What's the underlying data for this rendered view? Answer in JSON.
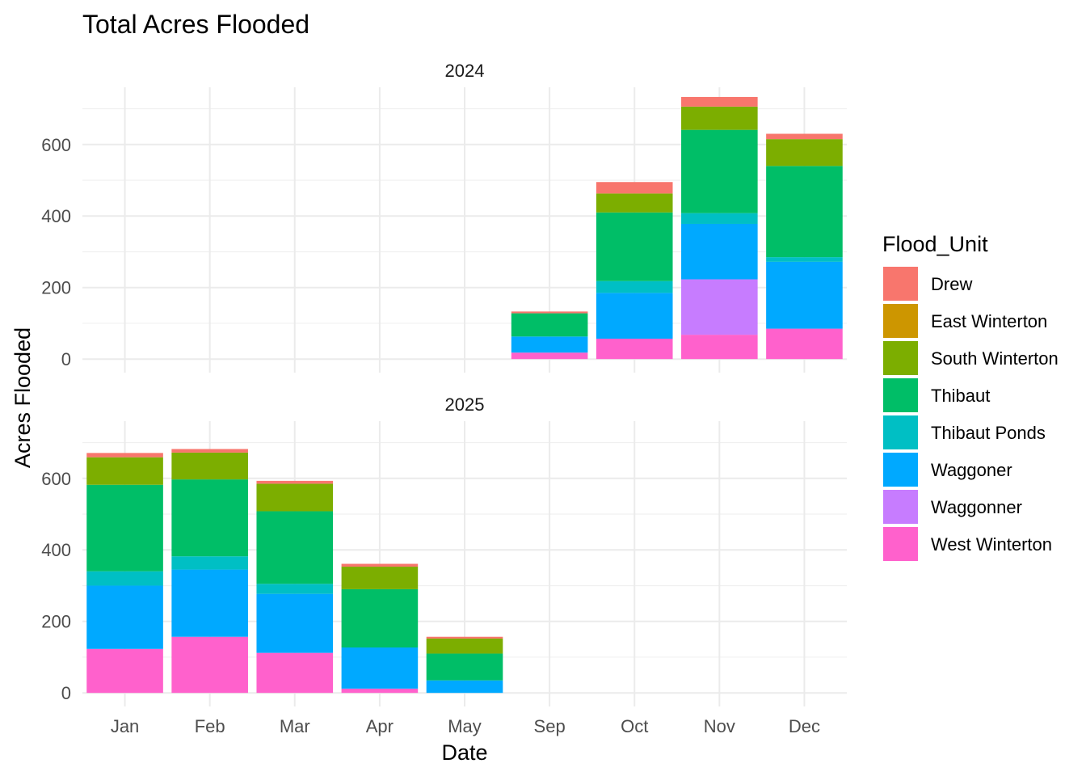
{
  "chart_data": {
    "type": "bar",
    "stacked": true,
    "title": "Total Acres Flooded",
    "xlabel": "Date",
    "ylabel": "Acres Flooded",
    "categories": [
      "Jan",
      "Feb",
      "Mar",
      "Apr",
      "May",
      "Sep",
      "Oct",
      "Nov",
      "Dec"
    ],
    "ylim": [
      -38,
      760
    ],
    "y_ticks": [
      0,
      200,
      400,
      600
    ],
    "grid": true,
    "legend": {
      "title": "Flood_Unit",
      "placement": "right",
      "entries": [
        {
          "name": "Drew",
          "color": "#F8766D"
        },
        {
          "name": "East Winterton",
          "color": "#CD9600"
        },
        {
          "name": "South Winterton",
          "color": "#7CAE00"
        },
        {
          "name": "Thibaut",
          "color": "#00BE67"
        },
        {
          "name": "Thibaut Ponds",
          "color": "#00BFC4"
        },
        {
          "name": "Waggoner",
          "color": "#00A9FF"
        },
        {
          "name": "Waggonner",
          "color": "#C77CFF"
        },
        {
          "name": "West Winterton",
          "color": "#FF61CC"
        }
      ]
    },
    "facets": [
      {
        "label": "2024",
        "series": [
          {
            "name": "West Winterton",
            "values": [
              0,
              0,
              0,
              0,
              0,
              18,
              57,
              68,
              85
            ]
          },
          {
            "name": "Waggonner",
            "values": [
              0,
              0,
              0,
              0,
              0,
              0,
              0,
              155,
              0
            ]
          },
          {
            "name": "Waggoner",
            "values": [
              0,
              0,
              0,
              0,
              0,
              45,
              128,
              155,
              187
            ]
          },
          {
            "name": "Thibaut Ponds",
            "values": [
              0,
              0,
              0,
              0,
              0,
              0,
              33,
              30,
              13
            ]
          },
          {
            "name": "Thibaut",
            "values": [
              0,
              0,
              0,
              0,
              0,
              65,
              192,
              233,
              255
            ]
          },
          {
            "name": "East Winterton",
            "values": [
              0,
              0,
              0,
              0,
              0,
              0,
              0,
              0,
              0
            ]
          },
          {
            "name": "South Winterton",
            "values": [
              0,
              0,
              0,
              0,
              0,
              0,
              53,
              65,
              75
            ]
          },
          {
            "name": "Drew",
            "values": [
              0,
              0,
              0,
              0,
              0,
              5,
              32,
              27,
              15
            ]
          }
        ]
      },
      {
        "label": "2025",
        "series": [
          {
            "name": "West Winterton",
            "values": [
              123,
              157,
              112,
              12,
              0,
              0,
              0,
              0,
              0
            ]
          },
          {
            "name": "Waggonner",
            "values": [
              0,
              0,
              0,
              0,
              0,
              0,
              0,
              0,
              0
            ]
          },
          {
            "name": "Waggoner",
            "values": [
              177,
              188,
              165,
              115,
              35,
              0,
              0,
              0,
              0
            ]
          },
          {
            "name": "Thibaut Ponds",
            "values": [
              40,
              37,
              28,
              0,
              0,
              0,
              0,
              0,
              0
            ]
          },
          {
            "name": "Thibaut",
            "values": [
              242,
              215,
              203,
              163,
              75,
              0,
              0,
              0,
              0
            ]
          },
          {
            "name": "East Winterton",
            "values": [
              0,
              0,
              0,
              0,
              0,
              0,
              0,
              0,
              0
            ]
          },
          {
            "name": "South Winterton",
            "values": [
              77,
              75,
              77,
              63,
              42,
              0,
              0,
              0,
              0
            ]
          },
          {
            "name": "Drew",
            "values": [
              12,
              10,
              8,
              8,
              5,
              0,
              0,
              0,
              0
            ]
          }
        ]
      }
    ]
  }
}
